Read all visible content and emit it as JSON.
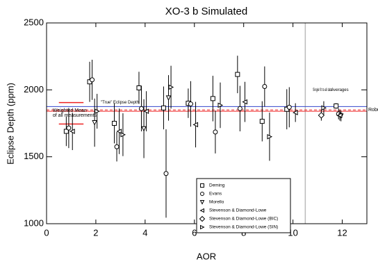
{
  "chart_data": {
    "type": "scatter",
    "title": "XO-3 b Simulated",
    "x_label": "AOR",
    "y_label": "Eclipse Depth (ppm)",
    "xlim": [
      0,
      13
    ],
    "ylim": [
      1000,
      2500
    ],
    "xticks": [
      0,
      2,
      4,
      6,
      8,
      10,
      12
    ],
    "yticks": [
      1000,
      1500,
      2000,
      2500
    ],
    "vline": 10.5,
    "hlines": [
      {
        "value": 1875,
        "label": "\"True\" Eclipse Depth",
        "color": "#3344cc",
        "dash": false
      },
      {
        "value": 1840,
        "label": "Weighted Mean",
        "color": "#ee2222",
        "dash": false
      },
      {
        "value": 1850,
        "label": "Robust",
        "color": "#ee2222",
        "dash": true
      }
    ],
    "mean_label": "of all measurements",
    "mean_band": [
      1745,
      1905
    ],
    "section_labels": [
      "Single fit to all data",
      "Averages"
    ],
    "series": [
      {
        "name": "Deming",
        "marker": "square",
        "color": "#000000",
        "x": [
          0.8,
          1.75,
          2.75,
          3.75,
          4.75,
          5.75,
          6.75,
          7.75,
          8.75,
          9.75,
          11.75
        ],
        "values": [
          1690,
          2060,
          1750,
          2015,
          1865,
          1900,
          1935,
          2115,
          1765,
          1855,
          1880
        ],
        "errors": [
          110,
          150,
          150,
          120,
          160,
          110,
          170,
          140,
          150,
          150,
          20
        ]
      },
      {
        "name": "Evans",
        "marker": "circle",
        "color": "#000000",
        "x": [
          0.9,
          1.85,
          2.85,
          3.85,
          4.85,
          5.85,
          6.85,
          7.85,
          8.85,
          9.85,
          11.85
        ],
        "values": [
          1715,
          2075,
          1575,
          1860,
          1375,
          1895,
          1685,
          1860,
          2025,
          1870,
          1820
        ],
        "errors": [
          150,
          150,
          110,
          170,
          330,
          170,
          160,
          170,
          150,
          150,
          40
        ]
      },
      {
        "name": "Morello",
        "marker": "down",
        "color": "#000000",
        "x": [
          1.95,
          3.95,
          4.95,
          11.95
        ],
        "values": [
          1755,
          1710,
          1940,
          1805
        ],
        "errors": [
          180,
          220,
          170,
          40
        ]
      },
      {
        "name": "Stevenson & Diamond-Lowe",
        "marker": "left",
        "color": "#000000",
        "x": [
          1.05,
          2.95,
          4.05,
          6.05,
          8.05,
          10.1,
          11.9
        ],
        "values": [
          1690,
          1690,
          1840,
          1740,
          1910,
          1830,
          1810
        ],
        "errors": [
          140,
          170,
          150,
          170,
          150,
          70,
          40
        ]
      },
      {
        "name": "Stevenson & Diamond-Lowe (BIC)",
        "marker": "diamond",
        "color": "#000000",
        "x": [
          11.15
        ],
        "values": [
          1810
        ],
        "errors": [
          40
        ]
      },
      {
        "name": "Stevenson & Diamond-Lowe (SIN)",
        "marker": "right",
        "color": "#000000",
        "x": [
          2.05,
          3.1,
          5.05,
          7.05,
          9.05,
          11.25
        ],
        "values": [
          1840,
          1665,
          2020,
          1885,
          1650,
          1865
        ],
        "errors": [
          130,
          160,
          160,
          170,
          180,
          50
        ]
      }
    ]
  }
}
